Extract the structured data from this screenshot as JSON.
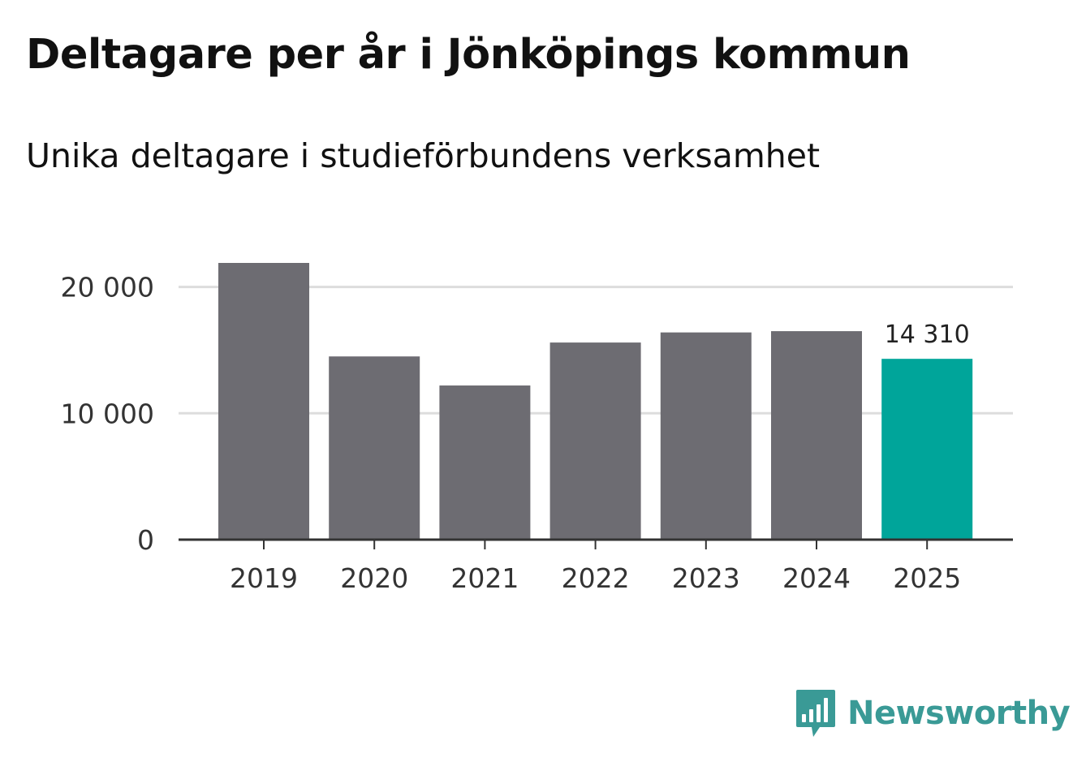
{
  "title": "Deltagare per år i Jönköpings kommun",
  "subtitle": "Unika deltagare i studieförbundens verksamhet",
  "brand": {
    "name": "Newsworthy",
    "icon": "bar-chart-speech-bubble-icon",
    "color": "#3a9a96"
  },
  "colors": {
    "bar": "#6d6c72",
    "highlight": "#00a59a",
    "grid": "#dddddd",
    "axis": "#333333"
  },
  "chart_data": {
    "type": "bar",
    "title": "Deltagare per år i Jönköpings kommun",
    "subtitle": "Unika deltagare i studieförbundens verksamhet",
    "xlabel": "",
    "ylabel": "",
    "categories": [
      "2019",
      "2020",
      "2021",
      "2022",
      "2023",
      "2024",
      "2025"
    ],
    "values": [
      21900,
      14500,
      12200,
      15600,
      16400,
      16500,
      14310
    ],
    "highlight_index": 6,
    "ylim": [
      0,
      21900
    ],
    "yticks": [
      0,
      10000,
      20000
    ],
    "ytick_labels": [
      "0",
      "10 000",
      "20 000"
    ],
    "data_labels": [
      {
        "category": "2025",
        "text": "14 310"
      }
    ],
    "grid": true,
    "legend": "none"
  }
}
